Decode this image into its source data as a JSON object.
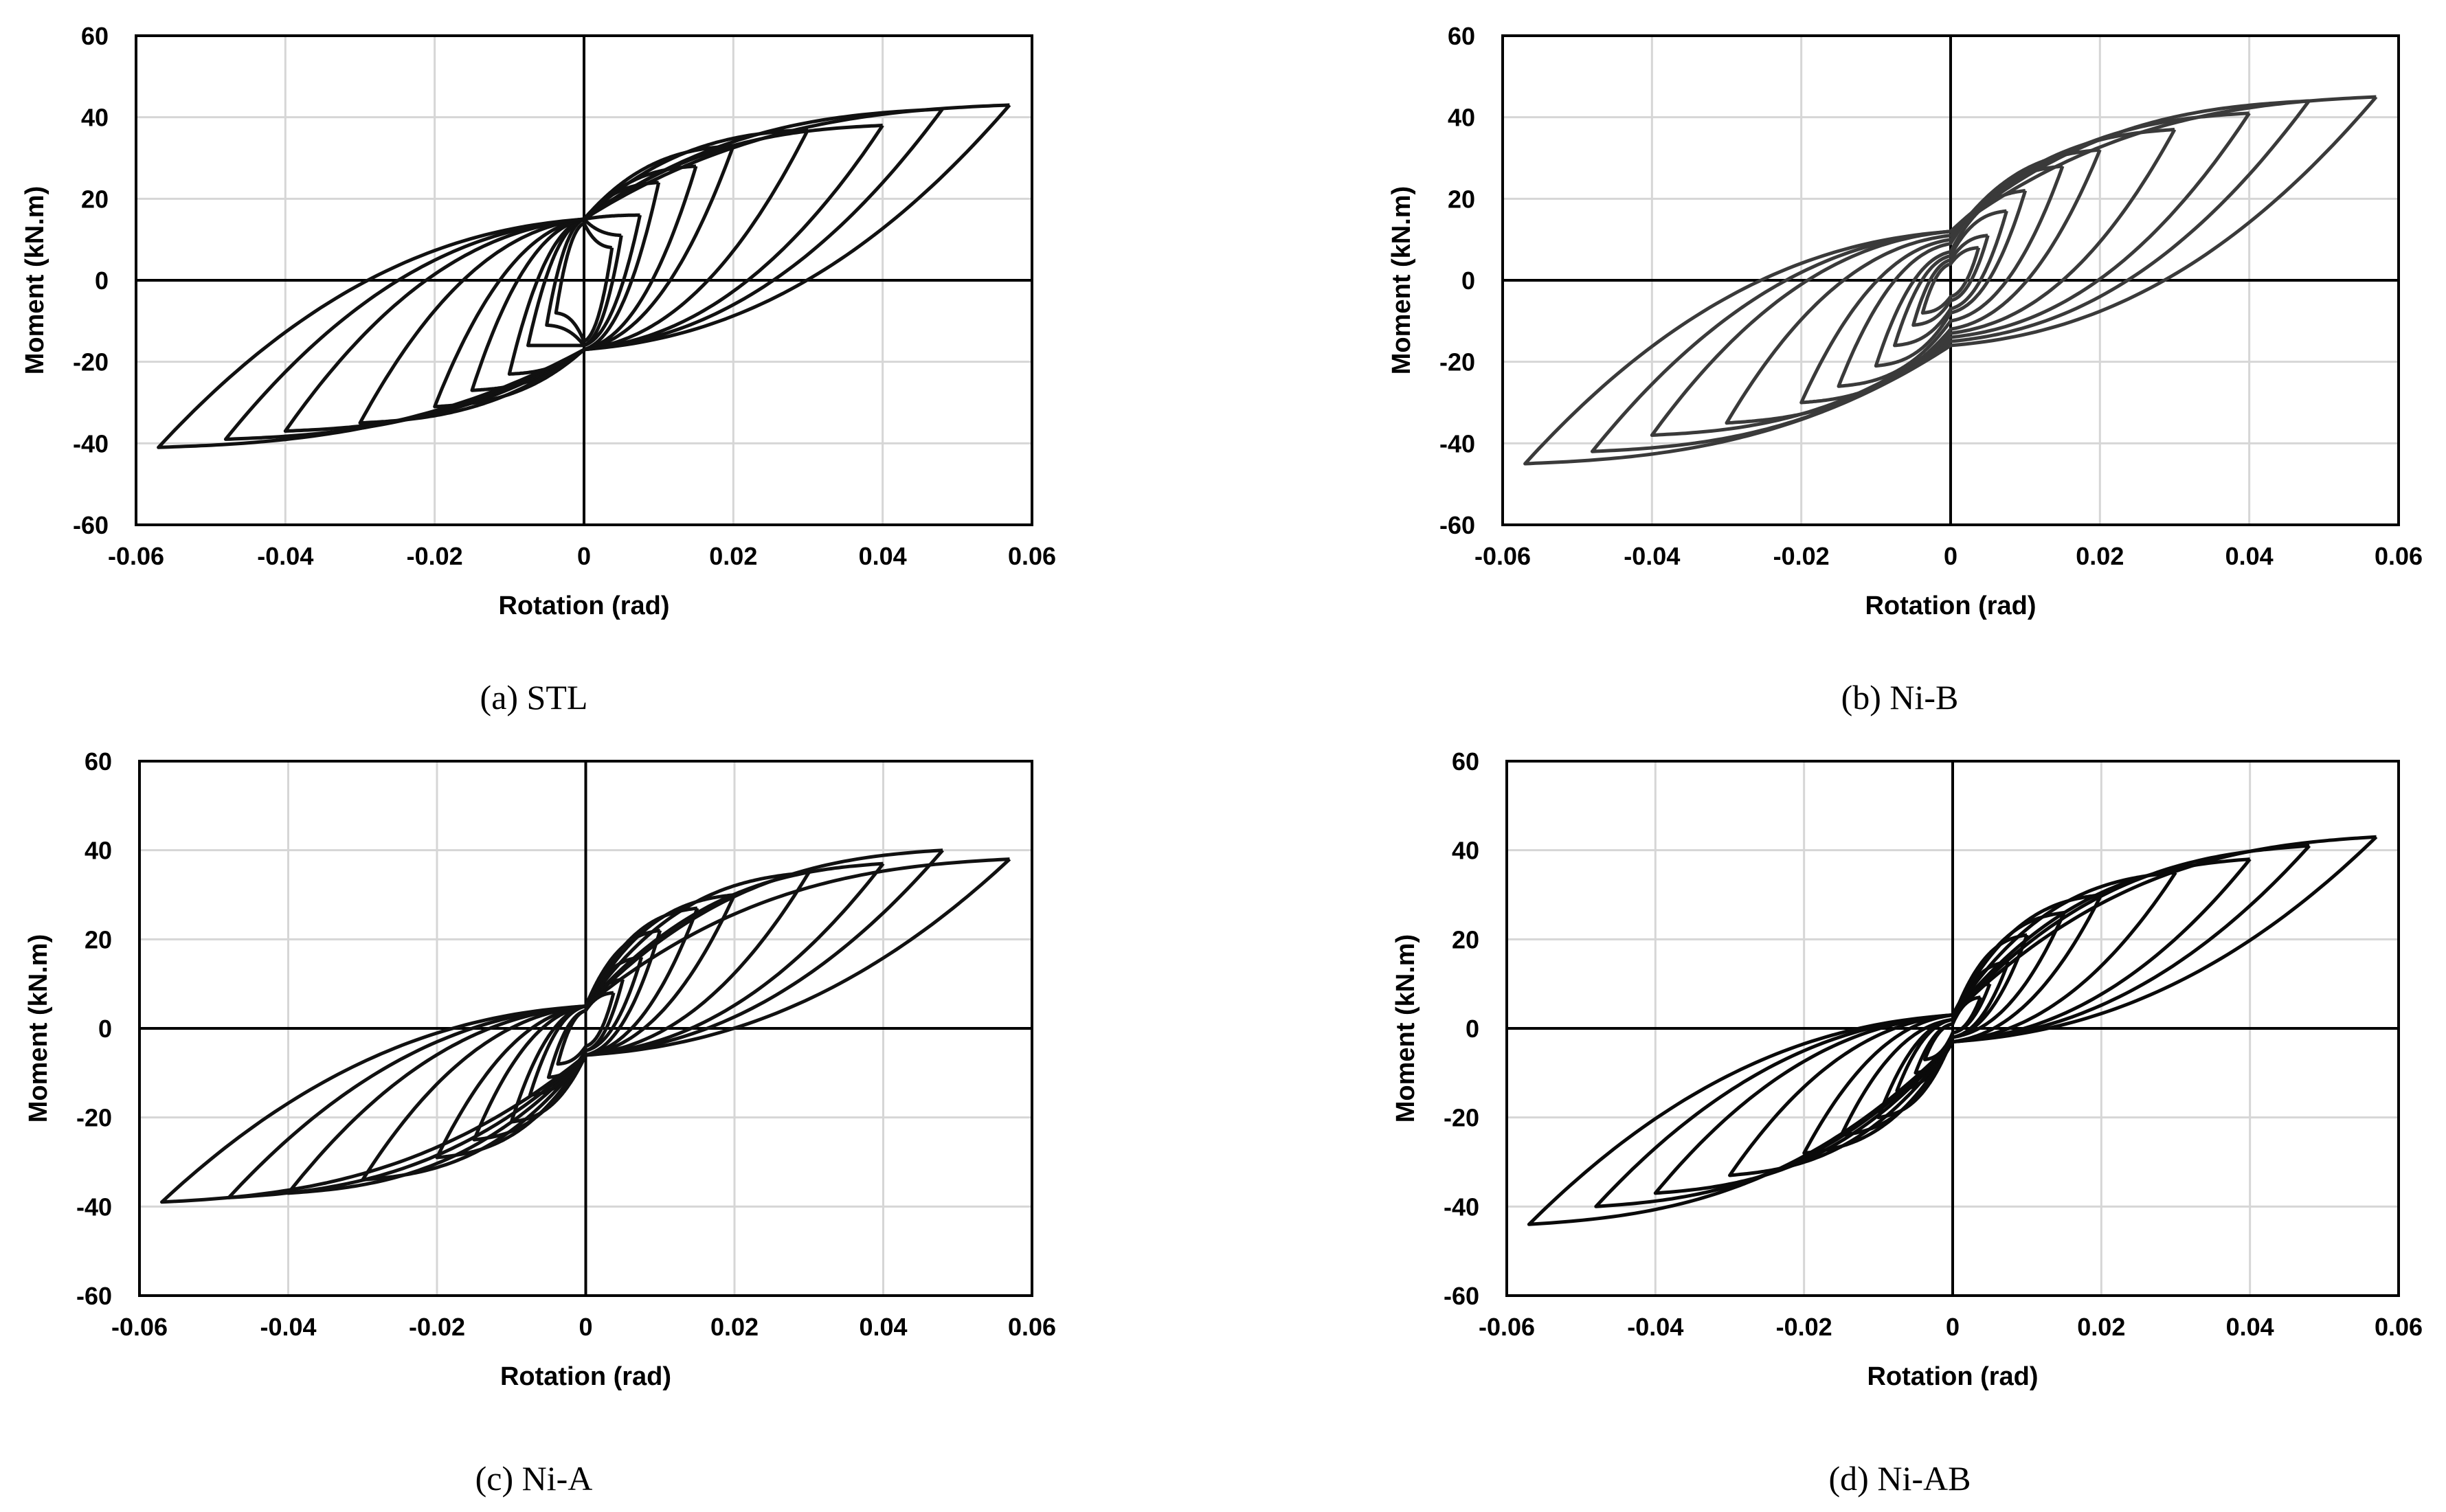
{
  "figure": {
    "captions": [
      "(a) STL",
      "(b) Ni-B",
      "(c) Ni-A",
      "(d) Ni-AB"
    ]
  },
  "chart_data": [
    {
      "id": "a",
      "type": "line",
      "title": "",
      "caption": "(a) STL",
      "xlabel": "Rotation (rad)",
      "ylabel": "Moment (kN.m)",
      "xlim": [
        -0.06,
        0.06
      ],
      "ylim": [
        -60,
        60
      ],
      "xticks": [
        -0.06,
        -0.04,
        -0.02,
        0,
        0.02,
        0.04,
        0.06
      ],
      "yticks": [
        -60,
        -40,
        -20,
        0,
        20,
        40,
        60
      ],
      "xtick_labels": [
        "-0.06",
        "-0.04",
        "-0.02",
        "0",
        "0.02",
        "0.04",
        "0.06"
      ],
      "ytick_labels": [
        "-60",
        "-40",
        "-20",
        "0",
        "20",
        "40",
        "60"
      ],
      "grid": true,
      "line_color": "#111111",
      "cycles": [
        {
          "amp": 0.00375,
          "pos_peak": 8,
          "neg_peak": -8,
          "pos_return": 14,
          "neg_return": -15
        },
        {
          "amp": 0.005,
          "pos_peak": 11,
          "neg_peak": -11,
          "pos_return": 15,
          "neg_return": -16
        },
        {
          "amp": 0.0075,
          "pos_peak": 16,
          "neg_peak": -16,
          "pos_return": 15,
          "neg_return": -16
        },
        {
          "amp": 0.01,
          "pos_peak": 24,
          "neg_peak": -23,
          "pos_return": 15,
          "neg_return": -17
        },
        {
          "amp": 0.015,
          "pos_peak": 28,
          "neg_peak": -27,
          "pos_return": 15,
          "neg_return": -17
        },
        {
          "amp": 0.02,
          "pos_peak": 33,
          "neg_peak": -31,
          "pos_return": 15,
          "neg_return": -17
        },
        {
          "amp": 0.03,
          "pos_peak": 37,
          "neg_peak": -35,
          "pos_return": 15,
          "neg_return": -17
        },
        {
          "amp": 0.04,
          "pos_peak": 38,
          "neg_peak": -37,
          "pos_return": 15,
          "neg_return": -17
        },
        {
          "amp": 0.048,
          "pos_peak": 42,
          "neg_peak": -39,
          "pos_return": 15,
          "neg_return": -17
        },
        {
          "amp": 0.057,
          "pos_peak": 43,
          "neg_peak": -41,
          "pos_return": 15,
          "neg_return": -17
        }
      ]
    },
    {
      "id": "b",
      "type": "line",
      "title": "",
      "caption": "(b) Ni-B",
      "xlabel": "Rotation (rad)",
      "ylabel": "Moment (kN.m)",
      "xlim": [
        -0.06,
        0.06
      ],
      "ylim": [
        -60,
        60
      ],
      "xticks": [
        -0.06,
        -0.04,
        -0.02,
        0,
        0.02,
        0.04,
        0.06
      ],
      "yticks": [
        -60,
        -40,
        -20,
        0,
        20,
        40,
        60
      ],
      "xtick_labels": [
        "-0.06",
        "-0.04",
        "-0.02",
        "0",
        "0.02",
        "0.04",
        "0.06"
      ],
      "ytick_labels": [
        "-60",
        "-40",
        "-20",
        "0",
        "20",
        "40",
        "60"
      ],
      "grid": true,
      "line_color": "#3a3a3a",
      "cycles": [
        {
          "amp": 0.00375,
          "pos_peak": 8,
          "neg_peak": -8,
          "pos_return": 4,
          "neg_return": -4
        },
        {
          "amp": 0.005,
          "pos_peak": 11,
          "neg_peak": -11,
          "pos_return": 5,
          "neg_return": -5
        },
        {
          "amp": 0.0075,
          "pos_peak": 17,
          "neg_peak": -16,
          "pos_return": 6,
          "neg_return": -7
        },
        {
          "amp": 0.01,
          "pos_peak": 22,
          "neg_peak": -21,
          "pos_return": 7,
          "neg_return": -8
        },
        {
          "amp": 0.015,
          "pos_peak": 28,
          "neg_peak": -26,
          "pos_return": 9,
          "neg_return": -10
        },
        {
          "amp": 0.02,
          "pos_peak": 32,
          "neg_peak": -30,
          "pos_return": 10,
          "neg_return": -12
        },
        {
          "amp": 0.03,
          "pos_peak": 37,
          "neg_peak": -35,
          "pos_return": 11,
          "neg_return": -13
        },
        {
          "amp": 0.04,
          "pos_peak": 41,
          "neg_peak": -38,
          "pos_return": 12,
          "neg_return": -14
        },
        {
          "amp": 0.048,
          "pos_peak": 44,
          "neg_peak": -42,
          "pos_return": 12,
          "neg_return": -15
        },
        {
          "amp": 0.057,
          "pos_peak": 45,
          "neg_peak": -45,
          "pos_return": 12,
          "neg_return": -16
        }
      ]
    },
    {
      "id": "c",
      "type": "line",
      "title": "",
      "caption": "(c) Ni-A",
      "xlabel": "Rotation (rad)",
      "ylabel": "Moment (kN.m)",
      "xlim": [
        -0.06,
        0.06
      ],
      "ylim": [
        -60,
        60
      ],
      "xticks": [
        -0.06,
        -0.04,
        -0.02,
        0,
        0.02,
        0.04,
        0.06
      ],
      "yticks": [
        -60,
        -40,
        -20,
        0,
        20,
        40,
        60
      ],
      "xtick_labels": [
        "-0.06",
        "-0.04",
        "-0.02",
        "0",
        "0.02",
        "0.04",
        "0.06"
      ],
      "ytick_labels": [
        "-60",
        "-40",
        "-20",
        "0",
        "20",
        "40",
        "60"
      ],
      "grid": true,
      "line_color": "#111111",
      "cycles": [
        {
          "amp": 0.00375,
          "pos_peak": 8,
          "neg_peak": -8,
          "pos_return": 4,
          "neg_return": -4
        },
        {
          "amp": 0.005,
          "pos_peak": 11,
          "neg_peak": -11,
          "pos_return": 4,
          "neg_return": -5
        },
        {
          "amp": 0.0075,
          "pos_peak": 16,
          "neg_peak": -15,
          "pos_return": 5,
          "neg_return": -5
        },
        {
          "amp": 0.01,
          "pos_peak": 22,
          "neg_peak": -21,
          "pos_return": 5,
          "neg_return": -6
        },
        {
          "amp": 0.015,
          "pos_peak": 27,
          "neg_peak": -25,
          "pos_return": 5,
          "neg_return": -6
        },
        {
          "amp": 0.02,
          "pos_peak": 30,
          "neg_peak": -29,
          "pos_return": 5,
          "neg_return": -6
        },
        {
          "amp": 0.03,
          "pos_peak": 35,
          "neg_peak": -34,
          "pos_return": 5,
          "neg_return": -6
        },
        {
          "amp": 0.04,
          "pos_peak": 37,
          "neg_peak": -37,
          "pos_return": 5,
          "neg_return": -6
        },
        {
          "amp": 0.048,
          "pos_peak": 40,
          "neg_peak": -38,
          "pos_return": 5,
          "neg_return": -6
        },
        {
          "amp": 0.057,
          "pos_peak": 38,
          "neg_peak": -39,
          "pos_return": 5,
          "neg_return": -6
        }
      ]
    },
    {
      "id": "d",
      "type": "line",
      "title": "",
      "caption": "(d) Ni-AB",
      "xlabel": "Rotation (rad)",
      "ylabel": "Moment (kN.m)",
      "xlim": [
        -0.06,
        0.06
      ],
      "ylim": [
        -60,
        60
      ],
      "xticks": [
        -0.06,
        -0.04,
        -0.02,
        0,
        0.02,
        0.04,
        0.06
      ],
      "yticks": [
        -60,
        -40,
        -20,
        0,
        20,
        40,
        60
      ],
      "xtick_labels": [
        "-0.06",
        "-0.04",
        "-0.02",
        "0",
        "0.02",
        "0.04",
        "0.06"
      ],
      "ytick_labels": [
        "-60",
        "-40",
        "-20",
        "0",
        "20",
        "40",
        "60"
      ],
      "grid": true,
      "line_color": "#0a0a0a",
      "cycles": [
        {
          "amp": 0.00375,
          "pos_peak": 7,
          "neg_peak": -7,
          "pos_return": 1,
          "neg_return": -1
        },
        {
          "amp": 0.005,
          "pos_peak": 10,
          "neg_peak": -10,
          "pos_return": 1,
          "neg_return": -1
        },
        {
          "amp": 0.0075,
          "pos_peak": 15,
          "neg_peak": -14,
          "pos_return": 2,
          "neg_return": -2
        },
        {
          "amp": 0.01,
          "pos_peak": 21,
          "neg_peak": -20,
          "pos_return": 2,
          "neg_return": -2
        },
        {
          "amp": 0.015,
          "pos_peak": 26,
          "neg_peak": -24,
          "pos_return": 2,
          "neg_return": -2
        },
        {
          "amp": 0.02,
          "pos_peak": 30,
          "neg_peak": -28,
          "pos_return": 3,
          "neg_return": -3
        },
        {
          "amp": 0.03,
          "pos_peak": 35,
          "neg_peak": -33,
          "pos_return": 3,
          "neg_return": -3
        },
        {
          "amp": 0.04,
          "pos_peak": 38,
          "neg_peak": -37,
          "pos_return": 3,
          "neg_return": -3
        },
        {
          "amp": 0.048,
          "pos_peak": 41,
          "neg_peak": -40,
          "pos_return": 3,
          "neg_return": -3
        },
        {
          "amp": 0.057,
          "pos_peak": 43,
          "neg_peak": -44,
          "pos_return": 3,
          "neg_return": -3
        }
      ]
    }
  ]
}
